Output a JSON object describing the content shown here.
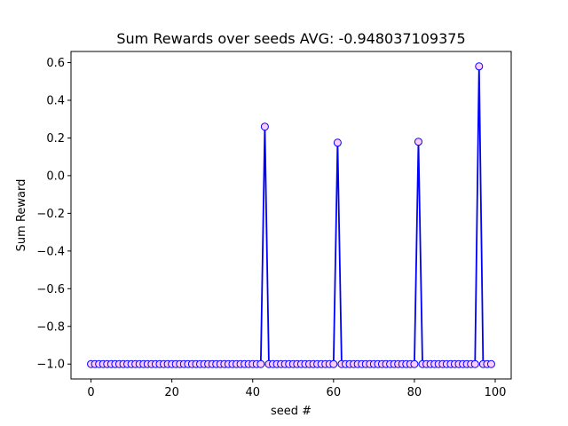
{
  "chart_data": {
    "type": "line",
    "title": "Sum Rewards over seeds AVG:  -0.948037109375",
    "xlabel": "seed #",
    "ylabel": "Sum Reward",
    "xlim": [
      -4.95,
      103.95
    ],
    "ylim": [
      -1.079,
      0.659
    ],
    "xticks": [
      0,
      20,
      40,
      60,
      80,
      100
    ],
    "xtick_labels": [
      "0",
      "20",
      "40",
      "60",
      "80",
      "100"
    ],
    "yticks": [
      -1.0,
      -0.8,
      -0.6,
      -0.4,
      -0.2,
      0.0,
      0.2,
      0.4,
      0.6
    ],
    "ytick_labels": [
      "−1.0",
      "−0.8",
      "−0.6",
      "−0.4",
      "−0.2",
      "0.0",
      "0.2",
      "0.4",
      "0.6"
    ],
    "grid": false,
    "series": [
      {
        "line_color": "#0000ff",
        "marker": "circle",
        "marker_face_color": "#ffccff",
        "marker_edge_color": "#0000ff",
        "x": [
          0,
          1,
          2,
          3,
          4,
          5,
          6,
          7,
          8,
          9,
          10,
          11,
          12,
          13,
          14,
          15,
          16,
          17,
          18,
          19,
          20,
          21,
          22,
          23,
          24,
          25,
          26,
          27,
          28,
          29,
          30,
          31,
          32,
          33,
          34,
          35,
          36,
          37,
          38,
          39,
          40,
          41,
          42,
          43,
          44,
          45,
          46,
          47,
          48,
          49,
          50,
          51,
          52,
          53,
          54,
          55,
          56,
          57,
          58,
          59,
          60,
          61,
          62,
          63,
          64,
          65,
          66,
          67,
          68,
          69,
          70,
          71,
          72,
          73,
          74,
          75,
          76,
          77,
          78,
          79,
          80,
          81,
          82,
          83,
          84,
          85,
          86,
          87,
          88,
          89,
          90,
          91,
          92,
          93,
          94,
          95,
          96,
          97,
          98,
          99
        ],
        "values": [
          -1,
          -1,
          -1,
          -1,
          -1,
          -1,
          -1,
          -1,
          -1,
          -1,
          -1,
          -1,
          -1,
          -1,
          -1,
          -1,
          -1,
          -1,
          -1,
          -1,
          -1,
          -1,
          -1,
          -1,
          -1,
          -1,
          -1,
          -1,
          -1,
          -1,
          -1,
          -1,
          -1,
          -1,
          -1,
          -1,
          -1,
          -1,
          -1,
          -1,
          -1,
          -1,
          -1,
          0.26,
          -1,
          -1,
          -1,
          -1,
          -1,
          -1,
          -1,
          -1,
          -1,
          -1,
          -1,
          -1,
          -1,
          -1,
          -1,
          -1,
          -1,
          0.175,
          -1,
          -1,
          -1,
          -1,
          -1,
          -1,
          -1,
          -1,
          -1,
          -1,
          -1,
          -1,
          -1,
          -1,
          -1,
          -1,
          -1,
          -1,
          -1,
          0.18,
          -1,
          -1,
          -1,
          -1,
          -1,
          -1,
          -1,
          -1,
          -1,
          -1,
          -1,
          -1,
          -1,
          -1,
          0.58,
          -1,
          -1,
          -1
        ]
      }
    ]
  }
}
